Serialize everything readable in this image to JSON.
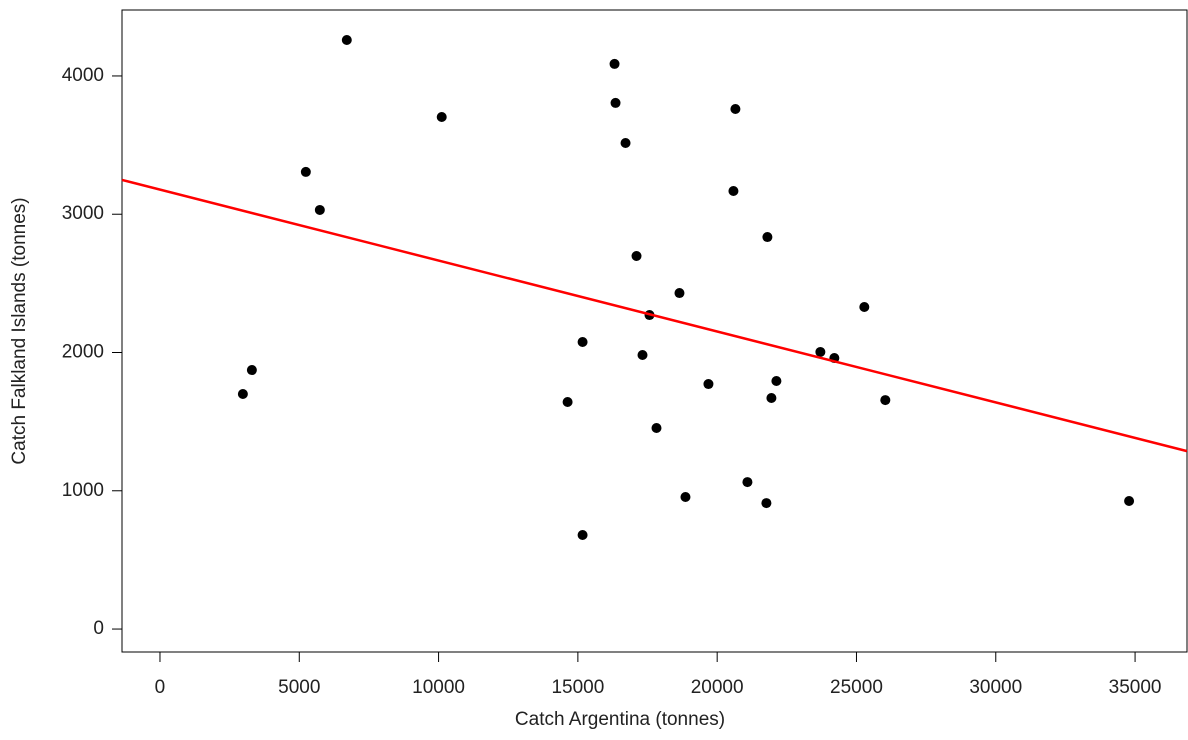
{
  "chart_data": {
    "type": "scatter",
    "xlabel": "Catch Argentina (tonnes)",
    "ylabel": "Catch Falkland Islands (tonnes)",
    "x": [
      2976,
      3299,
      5236,
      5738,
      6706,
      10113,
      14631,
      15169,
      15169,
      16316,
      16352,
      16711,
      17105,
      17320,
      17571,
      17822,
      18647,
      18862,
      19687,
      20584,
      20655,
      21086,
      21767,
      21803,
      21947,
      22126,
      23704,
      24206,
      25282,
      26035,
      34785
    ],
    "y": [
      1700,
      1873,
      3306,
      3031,
      4260,
      3703,
      1642,
      2076,
      680,
      4087,
      3805,
      3515,
      2698,
      1982,
      2271,
      1454,
      2430,
      955,
      1772,
      3168,
      3761,
      1063,
      911,
      2835,
      1671,
      1794,
      2004,
      1960,
      2329,
      1656,
      926
    ],
    "color": "#000000",
    "fit": {
      "intercept": 3178,
      "slope": -0.0513,
      "color": "#ff0000"
    },
    "xlim": [
      -1363,
      36864
    ],
    "xticks": [
      0,
      5000,
      10000,
      15000,
      20000,
      25000,
      30000,
      35000
    ],
    "ylim": [
      -166,
      4477
    ],
    "yticks": [
      0,
      1000,
      2000,
      3000,
      4000
    ]
  }
}
